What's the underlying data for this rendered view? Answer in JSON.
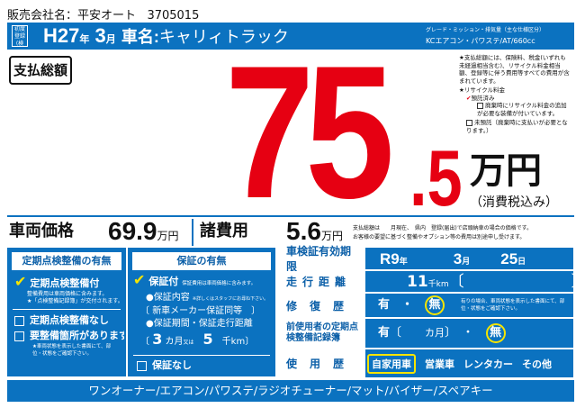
{
  "header": {
    "dealer_label": "販売会社名：",
    "dealer_name": "平安オート",
    "dealer_code": "3705015"
  },
  "title_bar": {
    "badge": "初度登録(検査)",
    "era_year": "H27",
    "year_unit": "年",
    "month": "3",
    "month_unit": "月",
    "car_name_label": "車名:",
    "car_name": "キャリィトラック",
    "spec_label": "グレード・ミッション・排気量（主な仕様区分）",
    "spec": "KCエアコン・パワステ/AT/660cc"
  },
  "total": {
    "label": "支払総額",
    "int": "75",
    "dec": ".5",
    "unit": "万円",
    "tax_note": "（消費税込み）"
  },
  "notes": {
    "total_note": "★支払総額には、保険料、税金(いずれも未経過相当含む)、リサイクル料金相当額、登録等に伴う費用等すべての費用が含まれています。",
    "recycle_title": "★リサイクル料金",
    "recycle_deposited": "預託済み",
    "recycle_extra": "廃棄時にリサイクル料金の追加が必要な装備が付いています。",
    "recycle_not": "未預託（廃棄時に支払いが必要となります。）"
  },
  "prices": {
    "vehicle_label": "車両価格",
    "vehicle_value": "69.9",
    "unit": "万円",
    "fees_label": "諸費用",
    "fees_value": "5.6",
    "note1": "支払総額は　　月現在、　県内　登録(届出)で店頭納車の場合の価格です。",
    "note2": "お客様の要望に基づく整備やオプション等の費用は別途申し受けます。"
  },
  "inspection": {
    "title": "定期点検整備の有無",
    "with": "定期点検整備付",
    "with_note1": "整備費用は車両価格に含みます。",
    "with_note2": "★「点検整備記録簿」が交付されます。",
    "without": "定期点検整備なし",
    "needs": "要整備箇所があります",
    "needs_note": "★車両状態を表示した書面にて、部位・状態をご確認下さい。"
  },
  "warranty": {
    "title": "保証の有無",
    "with": "保証付",
    "with_note": "保証費用は車両価格に含みます。",
    "content_label": "●保証内容",
    "content_note": "※詳しくはスタッフにお尋ね下さい。",
    "content": "新車メーカー保証同等",
    "period_label": "●保証期間・保証走行距離",
    "months": "3",
    "months_unit": "カ月",
    "or": "又は",
    "km": "5",
    "km_unit": "千km",
    "without": "保証なし"
  },
  "details": {
    "shaken_label": "車検証有効期限",
    "shaken_year": "R9",
    "y": "年",
    "shaken_month": "3",
    "m": "月",
    "shaken_day": "25",
    "d": "日",
    "mileage_label": "走行距離",
    "mileage": "11",
    "mileage_unit": "千km",
    "repair_label": "修復歴",
    "yes": "有",
    "dot": "・",
    "no": "無",
    "repair_note": "有りの場合、車両状態を表示した書面にて、部位・状態をご確認下さい。",
    "record_label": "前使用者の定期点検整備記録簿",
    "record_months_unit": "カ月",
    "usage_label": "使用歴",
    "usage": [
      "自家用車",
      "営業車",
      "レンタカー",
      "その他"
    ],
    "usage_selected": "自家用車"
  },
  "equipment": "ワンオーナー/エアコン/パワステ/ラジオチューナー/マット/バイザー/スペアキー",
  "colors": {
    "blue": "#0b72c0",
    "red": "#e60012",
    "yellow": "#f5e400"
  }
}
